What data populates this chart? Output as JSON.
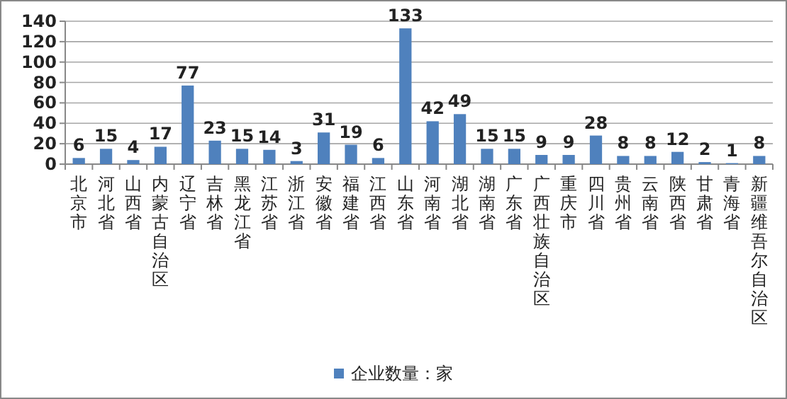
{
  "chart_data": {
    "type": "bar",
    "categories": [
      "北京市",
      "河北省",
      "山西省",
      "内蒙古自治区",
      "辽宁省",
      "吉林省",
      "黑龙江省",
      "江苏省",
      "浙江省",
      "安徽省",
      "福建省",
      "江西省",
      "山东省",
      "河南省",
      "湖北省",
      "湖南省",
      "广东省",
      "广西壮族自治区",
      "重庆市",
      "四川省",
      "贵州省",
      "云南省",
      "陕西省",
      "甘肃省",
      "青海省",
      "新疆维吾尔自治区"
    ],
    "series": [
      {
        "name": "企业数量：家",
        "color": "#4f81bd",
        "values": [
          6,
          15,
          4,
          17,
          77,
          23,
          15,
          14,
          3,
          31,
          19,
          6,
          133,
          42,
          49,
          15,
          15,
          9,
          9,
          28,
          8,
          8,
          12,
          2,
          1,
          8
        ]
      }
    ],
    "ylim": [
      0,
      140
    ],
    "yticks": [
      0,
      20,
      40,
      60,
      80,
      100,
      120,
      140
    ],
    "grid": "y",
    "data_labels": true,
    "legend": "bottom"
  }
}
